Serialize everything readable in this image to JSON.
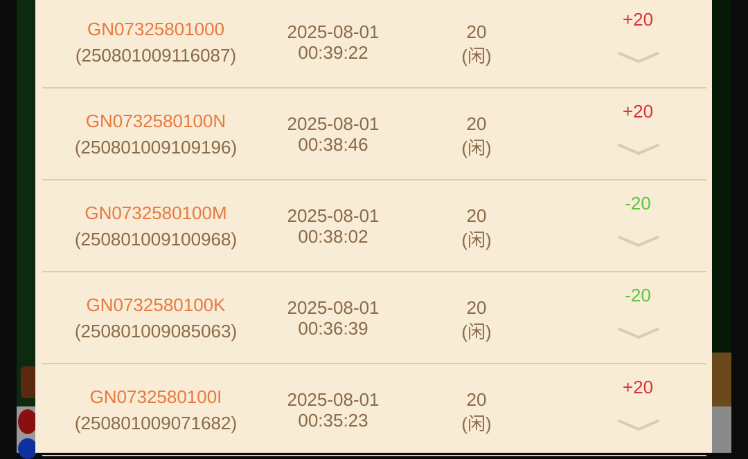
{
  "colors": {
    "win": "#d8333a",
    "loss": "#5cc43a",
    "order_id": "#e8793e",
    "text": "#8a6a48",
    "panel": "#f8ecd6"
  },
  "rows": [
    {
      "order_id": "GN07325801000",
      "round_id": "(250801009116087)",
      "date": "2025-08-01",
      "time": "00:39:22",
      "amount": "20",
      "side": "(闲)",
      "result": "+20",
      "outcome": "win",
      "expand_icon": "chevron-down"
    },
    {
      "order_id": "GN0732580100N",
      "round_id": "(250801009109196)",
      "date": "2025-08-01",
      "time": "00:38:46",
      "amount": "20",
      "side": "(闲)",
      "result": "+20",
      "outcome": "win",
      "expand_icon": "chevron-down"
    },
    {
      "order_id": "GN0732580100M",
      "round_id": "(250801009100968)",
      "date": "2025-08-01",
      "time": "00:38:02",
      "amount": "20",
      "side": "(闲)",
      "result": "-20",
      "outcome": "loss",
      "expand_icon": "chevron-down"
    },
    {
      "order_id": "GN0732580100K",
      "round_id": "(250801009085063)",
      "date": "2025-08-01",
      "time": "00:36:39",
      "amount": "20",
      "side": "(闲)",
      "result": "-20",
      "outcome": "loss",
      "expand_icon": "chevron-down"
    },
    {
      "order_id": "GN0732580100I",
      "round_id": "(250801009071682)",
      "date": "2025-08-01",
      "time": "00:35:23",
      "amount": "20",
      "side": "(闲)",
      "result": "+20",
      "outcome": "win",
      "expand_icon": "chevron-down"
    }
  ]
}
